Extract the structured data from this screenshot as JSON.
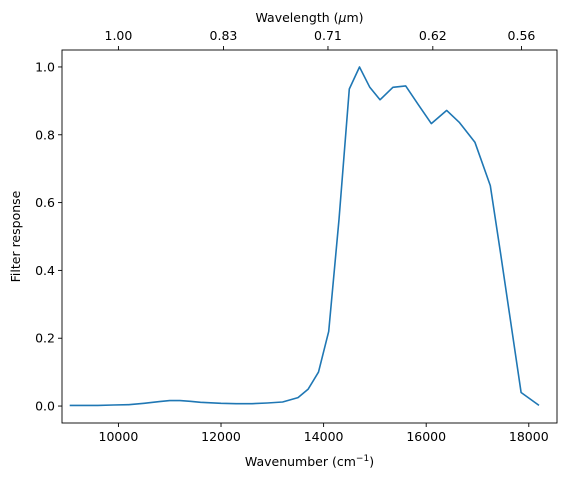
{
  "chart_data": {
    "type": "line",
    "title": "",
    "xlabel": "Wavenumber (cm",
    "xlabel_sup": "−1",
    "xlabel_tail": ")",
    "ylabel": "Filter response",
    "top_xlabel": "Wavelength (",
    "top_xlabel_mu": "μ",
    "top_xlabel_tail": "m)",
    "xlim": [
      8900,
      18550
    ],
    "ylim": [
      -0.05,
      1.05
    ],
    "grid": false,
    "x_ticks": [
      10000,
      12000,
      14000,
      16000,
      18000
    ],
    "x_tick_labels": [
      "10000",
      "12000",
      "14000",
      "16000",
      "18000"
    ],
    "y_ticks": [
      0.0,
      0.2,
      0.4,
      0.6,
      0.8,
      1.0
    ],
    "y_tick_labels": [
      "0.0",
      "0.2",
      "0.4",
      "0.6",
      "0.8",
      "1.0"
    ],
    "top_ticks": [
      10000,
      12048,
      14085,
      16129,
      17857
    ],
    "top_tick_labels": [
      "1.00",
      "0.83",
      "0.71",
      "0.62",
      "0.56"
    ],
    "line_color": "#1f77b4",
    "series": [
      {
        "x": [
          9050,
          9300,
          9600,
          9900,
          10200,
          10500,
          10800,
          11000,
          11200,
          11400,
          11600,
          12000,
          12300,
          12600,
          12900,
          13200,
          13500,
          13700,
          13900,
          14100,
          14300,
          14500,
          14700,
          14900,
          15100,
          15350,
          15600,
          15850,
          16100,
          16400,
          16650,
          16950,
          17250,
          17450,
          17850,
          18200
        ],
        "y": [
          0.002,
          0.002,
          0.002,
          0.003,
          0.004,
          0.008,
          0.013,
          0.016,
          0.016,
          0.014,
          0.011,
          0.008,
          0.007,
          0.007,
          0.009,
          0.012,
          0.025,
          0.05,
          0.1,
          0.22,
          0.55,
          0.935,
          1.0,
          0.94,
          0.903,
          0.94,
          0.944,
          0.888,
          0.833,
          0.872,
          0.836,
          0.778,
          0.65,
          0.45,
          0.04,
          0.002
        ]
      }
    ]
  }
}
